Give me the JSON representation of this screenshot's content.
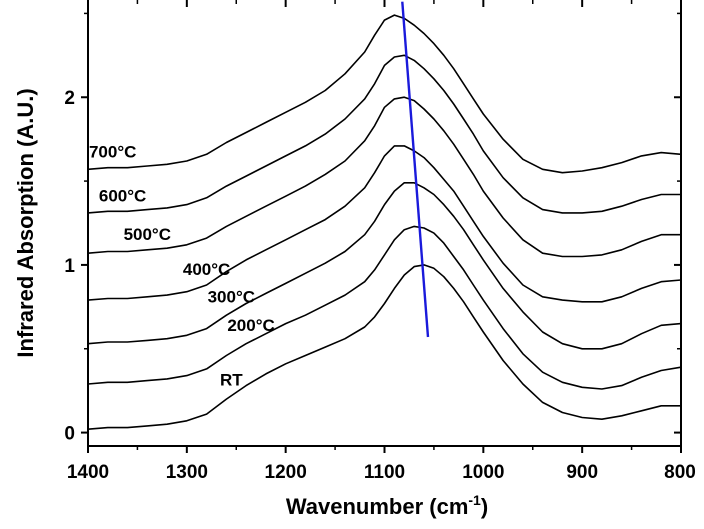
{
  "chart_data": {
    "type": "line",
    "xlabel": "Wavenumber (cm",
    "xlabel_sup": "-1",
    "xlabel_close": ")",
    "ylabel": "Infrared Absorption (A.U.)",
    "xlim": [
      1400,
      800
    ],
    "ylim": [
      -0.08,
      2.58
    ],
    "x_reversed": true,
    "grid": false,
    "legend": "none",
    "x_ticks": [
      1400,
      1300,
      1200,
      1100,
      1000,
      900,
      800
    ],
    "x_tick_labels": [
      "1400",
      "1300",
      "1200",
      "1100",
      "1000",
      "900",
      "800"
    ],
    "y_ticks": [
      0,
      1,
      2
    ],
    "y_tick_labels": [
      "0",
      "1",
      "2"
    ],
    "colors": {
      "spectra": "#000000",
      "peak_trend_line": "#1a1adb"
    },
    "x": [
      1400,
      1380,
      1360,
      1340,
      1320,
      1300,
      1280,
      1260,
      1240,
      1220,
      1200,
      1180,
      1160,
      1140,
      1120,
      1110,
      1100,
      1090,
      1080,
      1070,
      1060,
      1050,
      1040,
      1030,
      1020,
      1010,
      1000,
      980,
      960,
      940,
      920,
      900,
      880,
      860,
      840,
      820,
      800
    ],
    "series": [
      {
        "name": "RT",
        "values": [
          0.02,
          0.03,
          0.03,
          0.04,
          0.05,
          0.07,
          0.11,
          0.2,
          0.28,
          0.35,
          0.41,
          0.46,
          0.51,
          0.56,
          0.63,
          0.69,
          0.77,
          0.86,
          0.94,
          0.99,
          1.0,
          0.98,
          0.93,
          0.86,
          0.78,
          0.69,
          0.6,
          0.43,
          0.29,
          0.18,
          0.12,
          0.09,
          0.08,
          0.1,
          0.13,
          0.16,
          0.16
        ]
      },
      {
        "name": "200°C",
        "values": [
          0.29,
          0.3,
          0.3,
          0.31,
          0.32,
          0.34,
          0.38,
          0.46,
          0.53,
          0.59,
          0.65,
          0.7,
          0.76,
          0.82,
          0.9,
          0.97,
          1.06,
          1.15,
          1.21,
          1.23,
          1.22,
          1.19,
          1.13,
          1.05,
          0.97,
          0.88,
          0.79,
          0.62,
          0.47,
          0.36,
          0.3,
          0.27,
          0.26,
          0.28,
          0.33,
          0.37,
          0.39
        ]
      },
      {
        "name": "300°C",
        "values": [
          0.53,
          0.54,
          0.54,
          0.55,
          0.56,
          0.58,
          0.62,
          0.7,
          0.77,
          0.83,
          0.89,
          0.95,
          1.01,
          1.08,
          1.18,
          1.26,
          1.36,
          1.44,
          1.49,
          1.49,
          1.46,
          1.42,
          1.36,
          1.29,
          1.21,
          1.12,
          1.03,
          0.86,
          0.72,
          0.6,
          0.53,
          0.5,
          0.5,
          0.53,
          0.59,
          0.64,
          0.65
        ]
      },
      {
        "name": "400°C",
        "values": [
          0.79,
          0.8,
          0.8,
          0.81,
          0.82,
          0.84,
          0.88,
          0.96,
          1.03,
          1.09,
          1.15,
          1.21,
          1.27,
          1.35,
          1.46,
          1.55,
          1.65,
          1.71,
          1.71,
          1.68,
          1.64,
          1.58,
          1.51,
          1.44,
          1.35,
          1.26,
          1.17,
          1.01,
          0.88,
          0.81,
          0.79,
          0.78,
          0.78,
          0.81,
          0.86,
          0.9,
          0.91
        ]
      },
      {
        "name": "500°C",
        "values": [
          1.07,
          1.08,
          1.08,
          1.09,
          1.1,
          1.12,
          1.16,
          1.23,
          1.29,
          1.35,
          1.41,
          1.47,
          1.54,
          1.62,
          1.74,
          1.83,
          1.94,
          1.99,
          2.0,
          1.98,
          1.93,
          1.87,
          1.8,
          1.72,
          1.63,
          1.54,
          1.44,
          1.28,
          1.15,
          1.07,
          1.05,
          1.05,
          1.06,
          1.09,
          1.14,
          1.18,
          1.18
        ]
      },
      {
        "name": "600°C",
        "values": [
          1.31,
          1.32,
          1.32,
          1.33,
          1.34,
          1.36,
          1.4,
          1.47,
          1.53,
          1.59,
          1.65,
          1.71,
          1.78,
          1.87,
          1.99,
          2.08,
          2.19,
          2.24,
          2.25,
          2.22,
          2.17,
          2.11,
          2.04,
          1.96,
          1.87,
          1.78,
          1.68,
          1.52,
          1.4,
          1.33,
          1.31,
          1.31,
          1.32,
          1.35,
          1.39,
          1.42,
          1.42
        ]
      },
      {
        "name": "700°C",
        "values": [
          1.57,
          1.58,
          1.58,
          1.59,
          1.6,
          1.62,
          1.66,
          1.73,
          1.79,
          1.85,
          1.91,
          1.97,
          2.04,
          2.14,
          2.27,
          2.37,
          2.46,
          2.49,
          2.47,
          2.43,
          2.38,
          2.32,
          2.25,
          2.17,
          2.08,
          1.99,
          1.9,
          1.75,
          1.63,
          1.57,
          1.55,
          1.56,
          1.58,
          1.61,
          1.65,
          1.67,
          1.66
        ]
      }
    ],
    "peak_trend_line": {
      "x": [
        1082,
        1056
      ],
      "y": [
        2.57,
        0.57
      ]
    }
  }
}
